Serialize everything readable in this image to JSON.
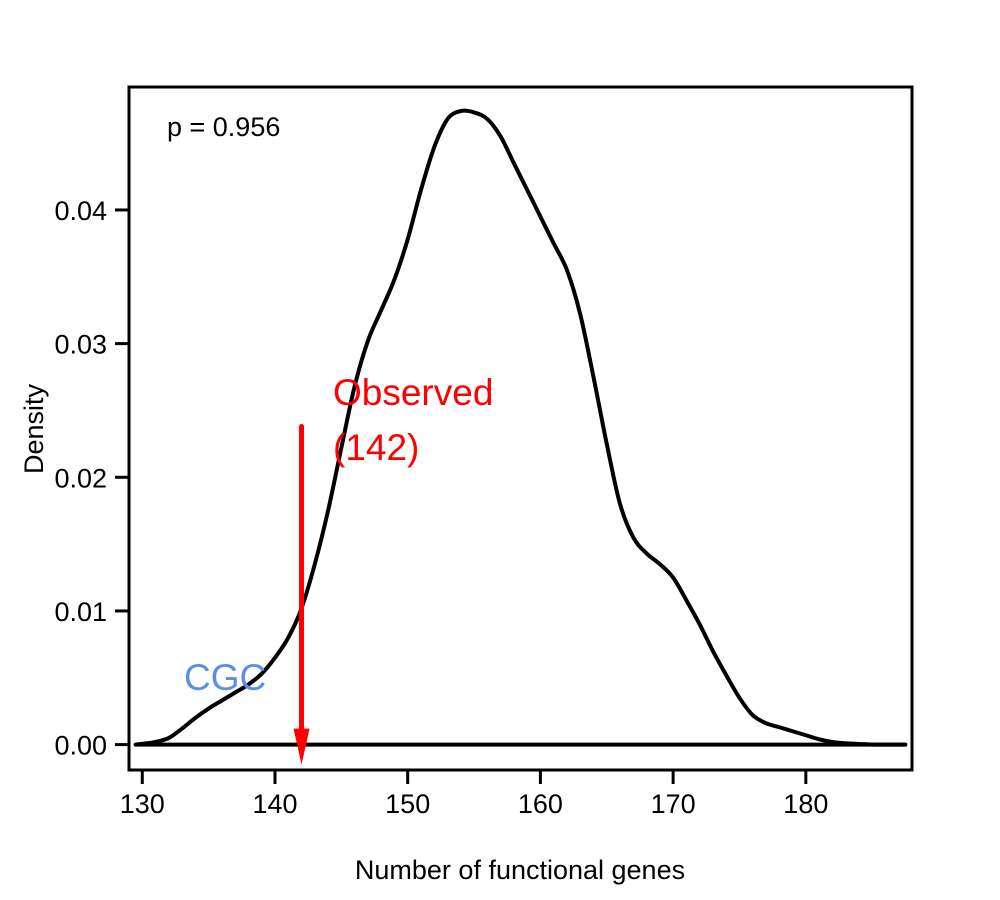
{
  "chart_data": {
    "type": "line",
    "title": "",
    "xlabel": "Number of functional genes",
    "ylabel": "Density",
    "xlim": [
      129,
      188
    ],
    "ylim": [
      -0.0019,
      0.0492
    ],
    "x_ticks": [
      130,
      140,
      150,
      160,
      170,
      180
    ],
    "y_ticks": [
      0.0,
      0.01,
      0.02,
      0.03,
      0.04
    ],
    "x_tick_labels": [
      "130",
      "140",
      "150",
      "160",
      "170",
      "180"
    ],
    "y_tick_labels": [
      "0.00",
      "0.01",
      "0.02",
      "0.03",
      "0.04"
    ],
    "grid": false,
    "series": [
      {
        "color": "#000000",
        "x": [
          129.5,
          131,
          132,
          133,
          134,
          135,
          136,
          137,
          138,
          139,
          140,
          141,
          142,
          143,
          144,
          145,
          146,
          147,
          148,
          149,
          150,
          151,
          152,
          153,
          154,
          155,
          156,
          157,
          158,
          159,
          160,
          161,
          162,
          163,
          164,
          165,
          166,
          167,
          168,
          169,
          170,
          171,
          172,
          173,
          174,
          175,
          176,
          177,
          178,
          179,
          180,
          181,
          182,
          183,
          184,
          185,
          186,
          187.5
        ],
        "y": [
          0.0,
          0.0002,
          0.0005,
          0.0012,
          0.002,
          0.0027,
          0.0033,
          0.0039,
          0.0045,
          0.0053,
          0.0065,
          0.008,
          0.0102,
          0.0135,
          0.0175,
          0.0222,
          0.0268,
          0.0302,
          0.0325,
          0.0348,
          0.0378,
          0.0415,
          0.0447,
          0.0468,
          0.0474,
          0.0473,
          0.0468,
          0.0455,
          0.0435,
          0.0415,
          0.0395,
          0.0375,
          0.0355,
          0.0322,
          0.0275,
          0.0225,
          0.018,
          0.0155,
          0.0143,
          0.0135,
          0.0125,
          0.0108,
          0.009,
          0.007,
          0.0052,
          0.0035,
          0.0022,
          0.0016,
          0.0013,
          0.001,
          0.0007,
          0.0004,
          0.0002,
          0.0001,
          5e-05,
          0.0,
          0.0,
          0.0
        ]
      }
    ],
    "baseline": {
      "y": 0.0,
      "x": [
        129.5,
        187.5
      ],
      "color": "#000000"
    },
    "observed": {
      "x": 142,
      "arrow_top_y": 0.0238,
      "color": "#ff0000",
      "label_line1": "Observed",
      "label_line2": "(142)"
    },
    "annotations": {
      "pvalue_text": "p = 0.956",
      "cgc_text": "CGC",
      "cgc_color": "#5b8fe6"
    }
  }
}
